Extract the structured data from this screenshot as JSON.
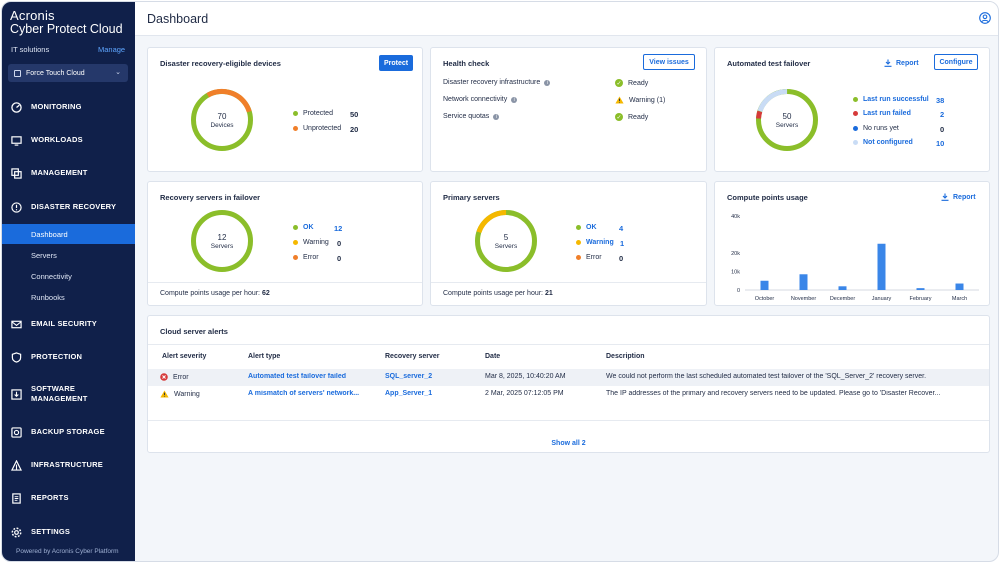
{
  "sidebar": {
    "brand_line1": "Acronis",
    "brand_line2": "Cyber Protect Cloud",
    "tenant": "IT solutions",
    "manage": "Manage",
    "selected_tenant": "Force Touch Cloud",
    "items": [
      {
        "label": "MONITORING",
        "icon": "monitoring-icon"
      },
      {
        "label": "WORKLOADS",
        "icon": "workloads-icon"
      },
      {
        "label": "MANAGEMENT",
        "icon": "management-icon"
      },
      {
        "label": "DISASTER RECOVERY",
        "icon": "disaster-recovery-icon"
      },
      {
        "label": "EMAIL SECURITY",
        "icon": "email-icon"
      },
      {
        "label": "PROTECTION",
        "icon": "shield-icon"
      },
      {
        "label": "SOFTWARE",
        "label2": "MANAGEMENT",
        "icon": "software-icon"
      },
      {
        "label": "BACKUP STORAGE",
        "icon": "storage-icon"
      },
      {
        "label": "INFRASTRUCTURE",
        "icon": "infrastructure-icon"
      },
      {
        "label": "REPORTS",
        "icon": "reports-icon"
      },
      {
        "label": "SETTINGS",
        "icon": "gear-icon"
      }
    ],
    "sub_items": [
      "Dashboard",
      "Servers",
      "Connectivity",
      "Runbooks"
    ],
    "powered_by": "Powered by Acronis Cyber Platform"
  },
  "header": {
    "title": "Dashboard"
  },
  "dr_devices": {
    "title": "Disaster recovery-eligible devices",
    "button": "Protect",
    "total": "70",
    "total_label": "Devices",
    "legend": [
      {
        "label": "Protected",
        "value": "50",
        "color": "#8bbe2a"
      },
      {
        "label": "Unprotected",
        "value": "20",
        "color": "#f07f2a"
      }
    ]
  },
  "health": {
    "title": "Health check",
    "button": "View issues",
    "rows": [
      {
        "label": "Disaster recovery infrastructure",
        "status": "Ready",
        "kind": "ok"
      },
      {
        "label": "Network connectivity",
        "status": "Warning (1)",
        "kind": "warn"
      },
      {
        "label": "Service quotas",
        "status": "Ready",
        "kind": "ok"
      }
    ]
  },
  "failover_test": {
    "title": "Automated test failover",
    "report": "Report",
    "configure": "Configure",
    "total": "50",
    "total_label": "Servers",
    "legend": [
      {
        "label": "Last run successful",
        "value": "38",
        "color": "#8bbe2a",
        "link": true
      },
      {
        "label": "Last run failed",
        "value": "2",
        "color": "#d63a3a",
        "link": true
      },
      {
        "label": "No runs yet",
        "value": "0",
        "color": "#1a6bdc",
        "link": false
      },
      {
        "label": "Not configured",
        "value": "10",
        "color": "#c9dcf5",
        "link": true
      }
    ]
  },
  "recovery_servers": {
    "title": "Recovery servers in failover",
    "total": "12",
    "total_label": "Servers",
    "legend": [
      {
        "label": "OK",
        "value": "12",
        "color": "#8bbe2a",
        "link": true
      },
      {
        "label": "Warning",
        "value": "0",
        "color": "#f5b800",
        "link": false
      },
      {
        "label": "Error",
        "value": "0",
        "color": "#f07f2a",
        "link": false
      }
    ],
    "footer_label": "Compute points usage per hour:",
    "footer_value": "62"
  },
  "primary_servers": {
    "title": "Primary servers",
    "total": "5",
    "total_label": "Servers",
    "legend": [
      {
        "label": "OK",
        "value": "4",
        "color": "#8bbe2a",
        "link": true
      },
      {
        "label": "Warning",
        "value": "1",
        "color": "#f5b800",
        "link": true
      },
      {
        "label": "Error",
        "value": "0",
        "color": "#f07f2a",
        "link": false
      }
    ],
    "footer_label": "Compute points usage per hour:",
    "footer_value": "21"
  },
  "compute": {
    "title": "Compute points usage",
    "report": "Report"
  },
  "chart_data": {
    "type": "bar",
    "title": "Compute points usage",
    "categories": [
      "October",
      "November",
      "December",
      "January",
      "February",
      "March"
    ],
    "values": [
      5000,
      8500,
      2000,
      25000,
      1000,
      3500
    ],
    "ylim": [
      0,
      40000
    ],
    "yticks": [
      "0",
      "10k",
      "20k",
      "40k"
    ],
    "ytick_values": [
      0,
      10000,
      20000,
      40000
    ],
    "grid": false,
    "color": "#3a86e8"
  },
  "alerts": {
    "title": "Cloud server alerts",
    "columns": [
      "Alert severity",
      "Alert type",
      "Recovery server",
      "Date",
      "Description"
    ],
    "rows": [
      {
        "severity": "Error",
        "type": "Automated test failover failed",
        "server": "SQL_server_2",
        "date": "Mar 8, 2025, 10:40:20 AM",
        "description": "We could not perform the last scheduled automated test failover of the 'SQL_Server_2' recovery server."
      },
      {
        "severity": "Warning",
        "type": "A mismatch of servers' network...",
        "server": "App_Server_1",
        "date": "2 Mar, 2025 07:12:05 PM",
        "description": "The IP addresses of the primary and recovery servers need to be updated. Please go to 'Disaster Recover..."
      }
    ],
    "show_all": "Show all 2"
  }
}
